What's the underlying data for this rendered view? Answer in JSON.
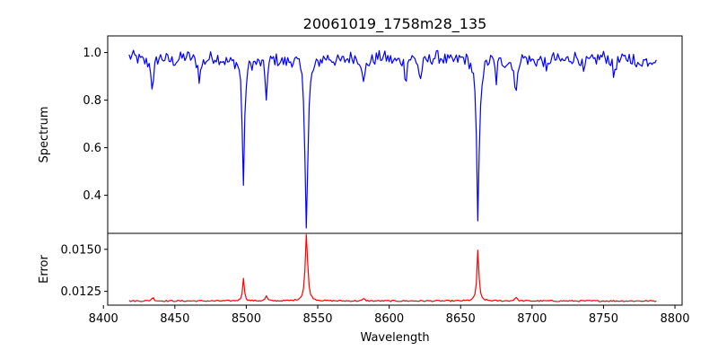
{
  "chart_data": {
    "title": "20061019_1758m28_135",
    "xlabel": "Wavelength",
    "xlim": [
      8403,
      8805
    ],
    "xticks": [
      8400,
      8450,
      8500,
      8550,
      8600,
      8650,
      8700,
      8750,
      8800
    ],
    "x_range": [
      8418,
      8787
    ],
    "x_step": 1,
    "panels": [
      {
        "name": "spectrum",
        "type": "line",
        "ylabel": "Spectrum",
        "ylim": [
          0.24,
          1.07
        ],
        "yticks": [
          0.4,
          0.6,
          0.8,
          1.0
        ],
        "ytick_labels": [
          "0.4",
          "0.6",
          "0.8",
          "1.0"
        ],
        "color": "#0000ff",
        "baseline": 0.975,
        "noise": 0.028,
        "lines": [
          {
            "center": 8498.0,
            "depth": 0.54,
            "width": 1.0
          },
          {
            "center": 8542.1,
            "depth": 0.7,
            "width": 1.2
          },
          {
            "center": 8662.1,
            "depth": 0.68,
            "width": 1.1
          },
          {
            "center": 8434.5,
            "depth": 0.14,
            "width": 1.0
          },
          {
            "center": 8514.0,
            "depth": 0.16,
            "width": 1.0
          },
          {
            "center": 8582.3,
            "depth": 0.12,
            "width": 0.8
          },
          {
            "center": 8611.6,
            "depth": 0.1,
            "width": 0.8
          },
          {
            "center": 8688.6,
            "depth": 0.2,
            "width": 0.8
          },
          {
            "center": 8674.8,
            "depth": 0.1,
            "width": 0.8
          },
          {
            "center": 8467.3,
            "depth": 0.08,
            "width": 0.9
          },
          {
            "center": 8621.7,
            "depth": 0.09,
            "width": 0.9
          },
          {
            "center": 8710.2,
            "depth": 0.08,
            "width": 0.9
          },
          {
            "center": 8736.0,
            "depth": 0.07,
            "width": 0.9
          },
          {
            "center": 8757.1,
            "depth": 0.07,
            "width": 0.9
          },
          {
            "center": 8773.0,
            "depth": 0.06,
            "width": 0.9
          }
        ]
      },
      {
        "name": "error",
        "type": "line",
        "ylabel": "Error",
        "ylim": [
          0.01168,
          0.01595
        ],
        "yticks": [
          0.0125,
          0.015
        ],
        "ytick_labels": [
          "0.0125",
          "0.0150"
        ],
        "color": "#ff0000",
        "baseline": 0.01193,
        "noise": 4e-05,
        "lines": [
          {
            "center": 8498.0,
            "height": 0.00137,
            "width": 0.7
          },
          {
            "center": 8542.1,
            "height": 0.00398,
            "width": 1.0
          },
          {
            "center": 8662.1,
            "height": 0.00307,
            "width": 0.8
          },
          {
            "center": 8434.5,
            "height": 0.00022,
            "width": 0.9
          },
          {
            "center": 8514.0,
            "height": 0.00028,
            "width": 0.8
          },
          {
            "center": 8688.6,
            "height": 0.00025,
            "width": 0.8
          },
          {
            "center": 8582.3,
            "height": 0.00014,
            "width": 0.8
          }
        ]
      }
    ]
  }
}
